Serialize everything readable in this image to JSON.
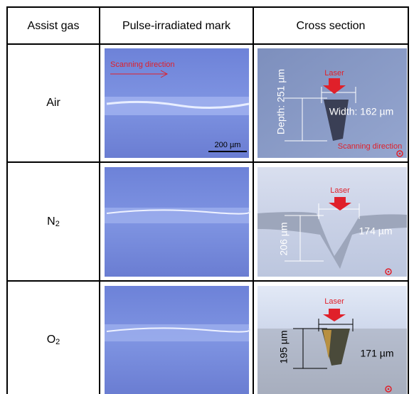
{
  "table": {
    "header": [
      "Assist gas",
      "Pulse-irradiated mark",
      "Cross section"
    ],
    "rows": [
      {
        "gas": {
          "text": "Air"
        },
        "mark_labels": [
          "Scanning direction",
          "200 µm"
        ],
        "section_labels": [
          "Laser",
          "Depth: 251 µm",
          "Width: 162 µm",
          "Scanning direction"
        ]
      },
      {
        "gas": {
          "text": "N",
          "subscript": "2"
        },
        "section_labels": [
          "Laser",
          "206 µm",
          "174 µm"
        ]
      },
      {
        "gas": {
          "text": "O",
          "subscript": "2"
        },
        "section_labels": [
          "Laser",
          "195 µm",
          "171 µm"
        ]
      }
    ]
  }
}
